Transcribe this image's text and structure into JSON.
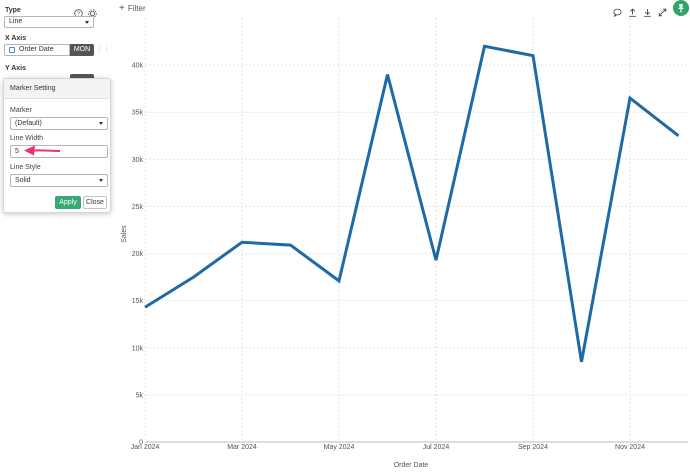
{
  "sidebar": {
    "type_label": "Type",
    "type_value": "Line",
    "x_axis_label": "X Axis",
    "x_axis_field": "Order Date",
    "x_axis_unit": "MON",
    "y_axis_label": "Y Axis"
  },
  "popup": {
    "title": "Marker Setting",
    "marker_label": "Marker",
    "marker_value": "(Default)",
    "line_width_label": "Line Width",
    "line_width_value": "5",
    "line_style_label": "Line Style",
    "line_style_value": "Solid",
    "apply_label": "Apply",
    "close_label": "Close"
  },
  "toolbar": {
    "filter_label": "Filter",
    "icons": [
      "comment-icon",
      "upload-icon",
      "download-icon",
      "expand-icon",
      "pin-icon"
    ]
  },
  "colors": {
    "line": "#1f6aa5",
    "accent_green": "#3aa872",
    "arrow": "#e8336d"
  },
  "chart_data": {
    "type": "line",
    "xlabel": "Order Date",
    "ylabel": "Sales",
    "x": [
      "2024-01",
      "2024-02",
      "2024-03",
      "2024-04",
      "2024-05",
      "2024-06",
      "2024-07",
      "2024-08",
      "2024-09",
      "2024-10",
      "2024-11",
      "2024-12"
    ],
    "x_tick_labels": [
      "Jan 2024",
      "Mar 2024",
      "May 2024",
      "Jul 2024",
      "Sep 2024",
      "Nov 2024"
    ],
    "x_tick_index": [
      0,
      2,
      4,
      6,
      8,
      10
    ],
    "values": [
      14300,
      17500,
      21200,
      20900,
      17100,
      39000,
      19300,
      42000,
      41000,
      8500,
      36500,
      32500
    ],
    "ylim": [
      0,
      45000
    ],
    "y_ticks": [
      0,
      5000,
      10000,
      15000,
      20000,
      25000,
      30000,
      35000,
      40000
    ],
    "y_tick_labels": [
      "0",
      "5k",
      "10k",
      "15k",
      "20k",
      "25k",
      "30k",
      "35k",
      "40k"
    ],
    "grid": true
  }
}
